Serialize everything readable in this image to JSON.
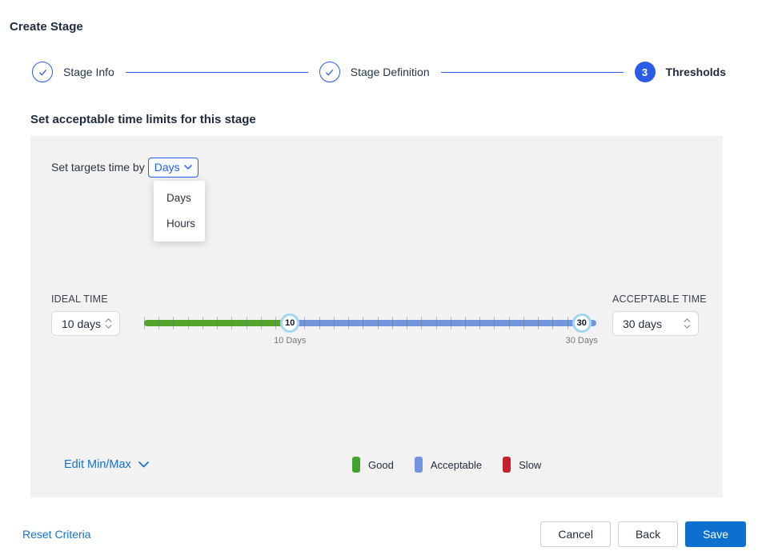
{
  "page": {
    "title": "Create Stage"
  },
  "stepper": {
    "steps": [
      {
        "label": "Stage Info",
        "state": "done"
      },
      {
        "label": "Stage Definition",
        "state": "done"
      },
      {
        "label": "Thresholds",
        "state": "current",
        "number": "3"
      }
    ]
  },
  "section": {
    "heading": "Set acceptable time limits for this stage"
  },
  "targets": {
    "label": "Set targets time by",
    "selected": "Days",
    "options": [
      "Days",
      "Hours"
    ]
  },
  "slider": {
    "min": 0,
    "max": 30,
    "ideal": {
      "label": "IDEAL TIME",
      "value": "10 days"
    },
    "acceptable": {
      "label": "ACCEPTABLE TIME",
      "value": "30 days"
    },
    "handles": [
      {
        "value": 10,
        "display": "10",
        "caption": "10 Days"
      },
      {
        "value": 30,
        "display": "30",
        "caption": "30 Days"
      }
    ],
    "track_colors": {
      "good": "#54a42c",
      "acceptable": "#7496dc"
    }
  },
  "legend": {
    "edit_label": "Edit Min/Max",
    "items": [
      {
        "label": "Good",
        "color": "#43a32e"
      },
      {
        "label": "Acceptable",
        "color": "#7295e2"
      },
      {
        "label": "Slow",
        "color": "#c6202f"
      }
    ]
  },
  "footer": {
    "reset_label": "Reset Criteria",
    "cancel_label": "Cancel",
    "back_label": "Back",
    "save_label": "Save"
  },
  "colors": {
    "accent_blue": "#2b5ce6",
    "link_blue": "#1273d3",
    "save_blue": "#0d6fce"
  }
}
